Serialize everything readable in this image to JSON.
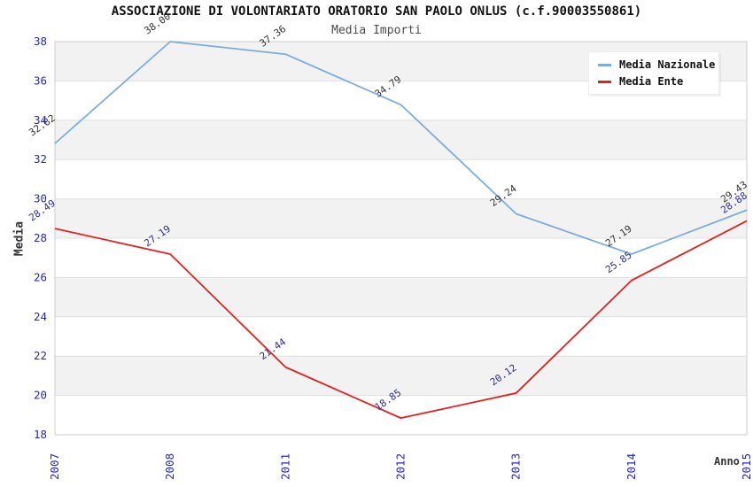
{
  "chart": {
    "title": "ASSOCIAZIONE DI VOLONTARIATO ORATORIO SAN PAOLO ONLUS (c.f.90003550861)",
    "subtitle": "Media Importi"
  },
  "chart_data": {
    "type": "line",
    "title": "ASSOCIAZIONE DI VOLONTARIATO ORATORIO SAN PAOLO ONLUS (c.f.90003550861)",
    "subtitle": "Media Importi",
    "xlabel": "Anno",
    "ylabel": "Media",
    "categories": [
      "2007",
      "2008",
      "2011",
      "2012",
      "2013",
      "2014",
      "2015"
    ],
    "series": [
      {
        "name": "Media Nazionale",
        "color": "#7cacdf",
        "label_color": "#333333",
        "values": [
          32.82,
          38.0,
          37.36,
          34.79,
          29.24,
          27.19,
          29.43
        ],
        "value_labels": [
          "32.82",
          "38.00",
          "37.36",
          "34.79",
          "29.24",
          "27.19",
          "29.43"
        ]
      },
      {
        "name": "Media Ente",
        "color": "#e02222",
        "label_color": "#2b2b9b",
        "values": [
          28.49,
          27.19,
          21.44,
          18.85,
          20.12,
          25.85,
          28.88
        ],
        "value_labels": [
          "28.49",
          "27.19",
          "21.44",
          "18.85",
          "20.12",
          "25.85",
          "28.88"
        ]
      }
    ],
    "ylim": [
      18,
      38
    ],
    "ytick_step": 2,
    "yticks": [
      "18",
      "20",
      "22",
      "24",
      "26",
      "28",
      "30",
      "32",
      "34",
      "36",
      "38"
    ],
    "grid": "alternating-horizontal-bands",
    "legend_position": "top-right"
  },
  "colors": {
    "tick_label": "#2525cf",
    "band_gray": "#f2f2f2",
    "gridline": "#e0e0e0",
    "plot_border": "#cccccc",
    "axis_title": "#333333"
  }
}
